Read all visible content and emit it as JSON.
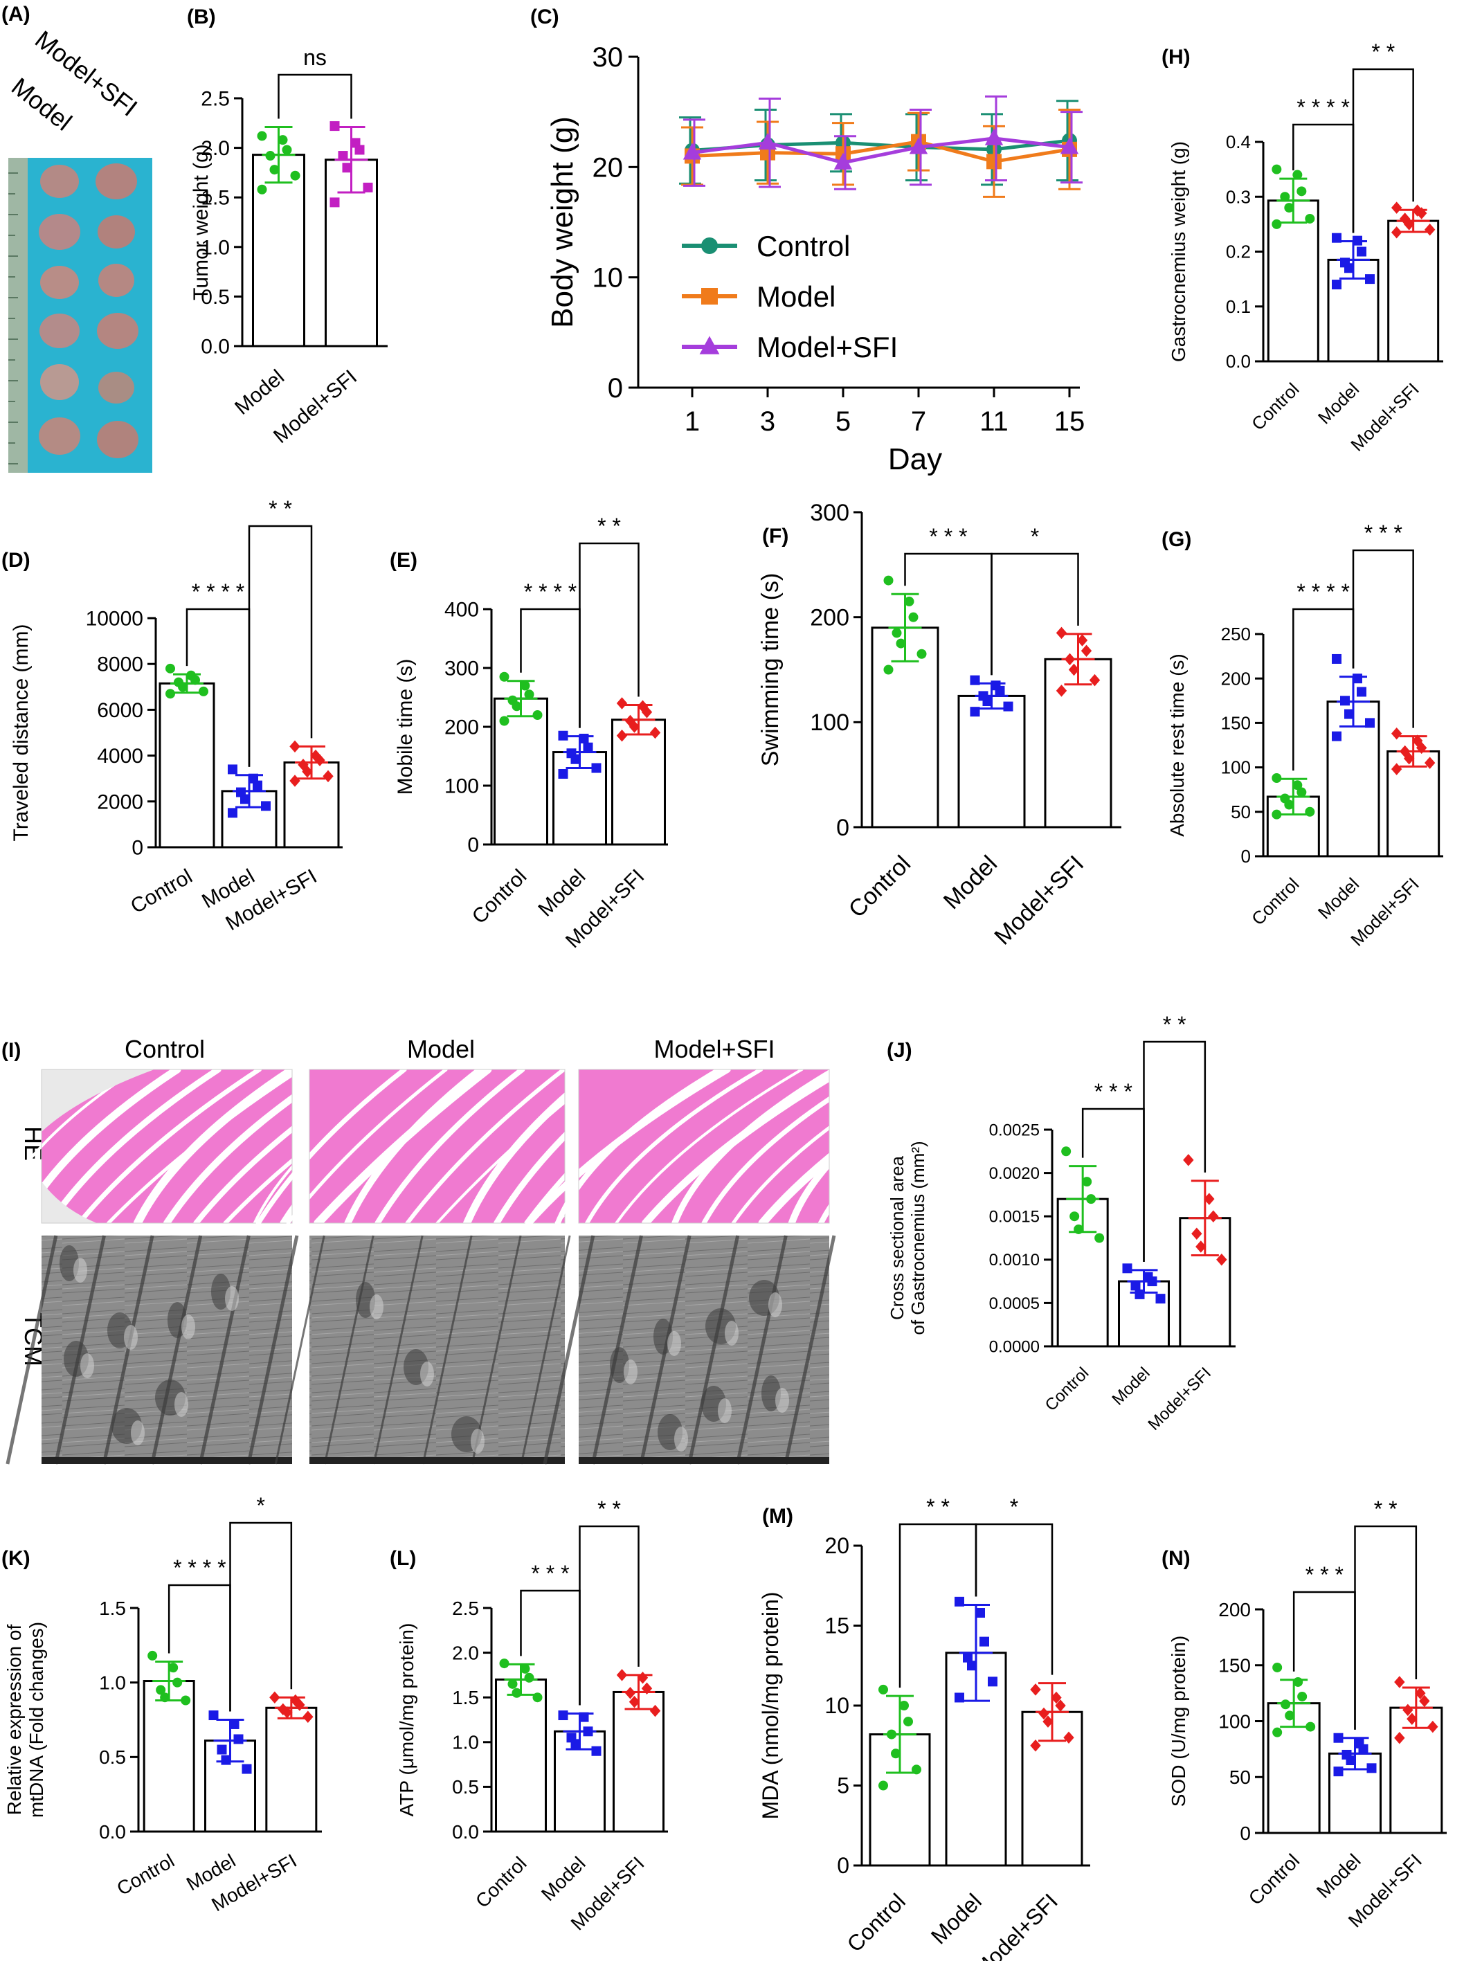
{
  "figure": {
    "panel_letters": [
      "(A)",
      "(B)",
      "(C)",
      "(D)",
      "(E)",
      "(F)",
      "(G)",
      "(H)",
      "(I)",
      "(J)",
      "(K)",
      "(L)",
      "(M)",
      "(N)"
    ],
    "photo_labels": [
      "Model+SFI",
      "Model"
    ],
    "histology": {
      "columns": [
        "Control",
        "Model",
        "Model+SFI"
      ],
      "rows": [
        "HE",
        "TCM"
      ],
      "he_colors": {
        "tissue": "#f07ad0",
        "gap": "#ffffff",
        "bg": "#e9e9e9"
      },
      "tem_colors": {
        "base": "#8a8a8a",
        "dark": "#3c3c3c",
        "light": "#d8d8d8"
      }
    },
    "group_colors": {
      "Control": "#1fbf1f",
      "Model": "#1a1ae6",
      "Model+SFI": "#e81e1e",
      "Model+SFI_B": "#c21fc2"
    }
  },
  "chart_data": [
    {
      "panel": "(B)",
      "type": "bar",
      "title": "",
      "categories": [
        "Model",
        "Model+SFI"
      ],
      "values": [
        1.93,
        1.88
      ],
      "sd": [
        0.28,
        0.33
      ],
      "points": [
        [
          2.12,
          2.08,
          1.98,
          1.92,
          1.78,
          1.72,
          1.58
        ],
        [
          2.22,
          2.05,
          1.98,
          1.92,
          1.8,
          1.6,
          1.45
        ]
      ],
      "ylabel": "Tumor weight (g)",
      "ylim": [
        0,
        2.5
      ],
      "yticks": [
        "0.0",
        "0.5",
        "1.0",
        "1.5",
        "2.0",
        "2.5"
      ],
      "colors": [
        "#1fbf1f",
        "#c21fc2"
      ],
      "markers": [
        "circle",
        "square"
      ],
      "sig": [
        {
          "from": 0,
          "to": 1,
          "label": "ns"
        }
      ]
    },
    {
      "panel": "(C)",
      "type": "line",
      "title": "",
      "x": [
        "1",
        "3",
        "5",
        "7",
        "11",
        "15"
      ],
      "xlabel": "Day",
      "ylabel": "Body weight (g)",
      "ylim": [
        0,
        30
      ],
      "yticks": [
        "0",
        "10",
        "20",
        "30"
      ],
      "legend_position": "center-left",
      "series": [
        {
          "name": "Control",
          "values": [
            21.5,
            22.0,
            22.2,
            21.8,
            21.6,
            22.4
          ],
          "sd": [
            3.0,
            3.2,
            2.6,
            3.0,
            3.2,
            3.6
          ],
          "color": "#1a8f73",
          "marker": "circle"
        },
        {
          "name": "Model",
          "values": [
            21.0,
            21.3,
            21.2,
            22.3,
            20.5,
            21.6
          ],
          "sd": [
            2.6,
            2.8,
            2.8,
            2.6,
            3.2,
            3.6
          ],
          "color": "#f07b1b",
          "marker": "square"
        },
        {
          "name": "Model+SFI",
          "values": [
            21.3,
            22.2,
            20.4,
            21.8,
            22.6,
            21.8
          ],
          "sd": [
            3.0,
            4.0,
            2.4,
            3.4,
            3.8,
            3.2
          ],
          "color": "#a53ddc",
          "marker": "triangle"
        }
      ]
    },
    {
      "panel": "(H)",
      "type": "bar",
      "title": "",
      "categories": [
        "Control",
        "Model",
        "Model+SFI"
      ],
      "values": [
        0.293,
        0.185,
        0.256
      ],
      "sd": [
        0.04,
        0.034,
        0.02
      ],
      "points": [
        [
          0.35,
          0.34,
          0.31,
          0.3,
          0.28,
          0.26,
          0.25
        ],
        [
          0.225,
          0.22,
          0.2,
          0.18,
          0.17,
          0.15,
          0.14
        ],
        [
          0.28,
          0.275,
          0.27,
          0.26,
          0.25,
          0.24,
          0.235
        ]
      ],
      "ylabel": "Gastrocnemius weight (g)",
      "ylim": [
        0,
        0.4
      ],
      "yticks": [
        "0.0",
        "0.1",
        "0.2",
        "0.3",
        "0.4"
      ],
      "colors": [
        "#1fbf1f",
        "#1a1ae6",
        "#e81e1e"
      ],
      "markers": [
        "circle",
        "square",
        "diamond"
      ],
      "sig": [
        {
          "from": 0,
          "to": 1,
          "label": "* * * *"
        },
        {
          "from": 1,
          "to": 2,
          "label": "* *"
        }
      ]
    },
    {
      "panel": "(D)",
      "type": "bar",
      "title": "",
      "categories": [
        "Control",
        "Model",
        "Model+SFI"
      ],
      "values": [
        7150,
        2450,
        3700
      ],
      "sd": [
        400,
        700,
        700
      ],
      "points": [
        [
          7800,
          7500,
          7300,
          7200,
          7000,
          6800,
          6700
        ],
        [
          3400,
          3000,
          2700,
          2400,
          2100,
          1800,
          1500
        ],
        [
          4400,
          4000,
          3800,
          3600,
          3300,
          3100,
          2900
        ]
      ],
      "ylabel": "Traveled distance (mm)",
      "ylim": [
        0,
        10000
      ],
      "yticks": [
        "0",
        "2000",
        "4000",
        "6000",
        "8000",
        "10000"
      ],
      "colors": [
        "#1fbf1f",
        "#1a1ae6",
        "#e81e1e"
      ],
      "markers": [
        "circle",
        "square",
        "diamond"
      ],
      "sig": [
        {
          "from": 0,
          "to": 1,
          "label": "* * * *"
        },
        {
          "from": 1,
          "to": 2,
          "label": "* *"
        }
      ]
    },
    {
      "panel": "(E)",
      "type": "bar",
      "title": "",
      "categories": [
        "Control",
        "Model",
        "Model+SFI"
      ],
      "values": [
        248,
        157,
        212
      ],
      "sd": [
        30,
        27,
        25
      ],
      "points": [
        [
          285,
          270,
          255,
          245,
          235,
          220,
          210
        ],
        [
          185,
          180,
          165,
          155,
          145,
          130,
          120
        ],
        [
          240,
          235,
          225,
          210,
          200,
          190,
          185
        ]
      ],
      "ylabel": "Mobile time (s)",
      "ylim": [
        0,
        400
      ],
      "yticks": [
        "0",
        "100",
        "200",
        "300",
        "400"
      ],
      "colors": [
        "#1fbf1f",
        "#1a1ae6",
        "#e81e1e"
      ],
      "markers": [
        "circle",
        "square",
        "diamond"
      ],
      "sig": [
        {
          "from": 0,
          "to": 1,
          "label": "* * * *"
        },
        {
          "from": 1,
          "to": 2,
          "label": "* *"
        }
      ]
    },
    {
      "panel": "(F)",
      "type": "bar",
      "title": "",
      "categories": [
        "Control",
        "Model",
        "Model+SFI"
      ],
      "values": [
        190,
        125,
        160
      ],
      "sd": [
        32,
        12,
        24
      ],
      "points": [
        [
          235,
          215,
          200,
          185,
          175,
          165,
          150
        ],
        [
          140,
          135,
          130,
          125,
          120,
          115,
          110
        ],
        [
          185,
          178,
          168,
          160,
          150,
          140,
          130
        ]
      ],
      "ylabel": "Swimming time (s)",
      "ylim": [
        0,
        300
      ],
      "yticks": [
        "0",
        "100",
        "200",
        "300"
      ],
      "colors": [
        "#1fbf1f",
        "#1a1ae6",
        "#e81e1e"
      ],
      "markers": [
        "circle",
        "square",
        "diamond"
      ],
      "sig": [
        {
          "from": 0,
          "to": 1,
          "label": "* * *"
        },
        {
          "from": 1,
          "to": 2,
          "label": "*"
        }
      ]
    },
    {
      "panel": "(G)",
      "type": "bar",
      "title": "",
      "categories": [
        "Control",
        "Model",
        "Model+SFI"
      ],
      "values": [
        67,
        174,
        118
      ],
      "sd": [
        20,
        28,
        17
      ],
      "points": [
        [
          88,
          80,
          72,
          65,
          58,
          50,
          47
        ],
        [
          222,
          200,
          185,
          175,
          160,
          150,
          135
        ],
        [
          138,
          130,
          122,
          118,
          110,
          105,
          98
        ]
      ],
      "ylabel": "Absolute rest time (s)",
      "ylim": [
        0,
        250
      ],
      "yticks": [
        "0",
        "50",
        "100",
        "150",
        "200",
        "250"
      ],
      "colors": [
        "#1fbf1f",
        "#1a1ae6",
        "#e81e1e"
      ],
      "markers": [
        "circle",
        "square",
        "diamond"
      ],
      "sig": [
        {
          "from": 0,
          "to": 1,
          "label": "* * * *"
        },
        {
          "from": 1,
          "to": 2,
          "label": "* * *"
        }
      ]
    },
    {
      "panel": "(J)",
      "type": "bar",
      "title": "",
      "categories": [
        "Control",
        "Model",
        "Model+SFI"
      ],
      "values": [
        0.0017,
        0.00075,
        0.00148
      ],
      "sd": [
        0.00038,
        0.00013,
        0.00043
      ],
      "points": [
        [
          0.00225,
          0.0019,
          0.0017,
          0.0015,
          0.00135,
          0.00125
        ],
        [
          0.0009,
          0.0008,
          0.00075,
          0.0007,
          0.0006,
          0.00055
        ],
        [
          0.00215,
          0.0017,
          0.0015,
          0.0013,
          0.00115,
          0.001
        ]
      ],
      "ylabel": "Cross sectional area",
      "ylabel2": "of Gastrocnemius (mm²)",
      "ylim": [
        0,
        0.0025
      ],
      "yticks": [
        "0.0000",
        "0.0005",
        "0.0010",
        "0.0015",
        "0.0020",
        "0.0025"
      ],
      "colors": [
        "#1fbf1f",
        "#1a1ae6",
        "#e81e1e"
      ],
      "markers": [
        "circle",
        "square",
        "diamond"
      ],
      "sig": [
        {
          "from": 0,
          "to": 1,
          "label": "* * *"
        },
        {
          "from": 1,
          "to": 2,
          "label": "* *"
        }
      ]
    },
    {
      "panel": "(K)",
      "type": "bar",
      "title": "",
      "categories": [
        "Control",
        "Model",
        "Model+SFI"
      ],
      "values": [
        1.01,
        0.61,
        0.83
      ],
      "sd": [
        0.13,
        0.14,
        0.07
      ],
      "points": [
        [
          1.18,
          1.1,
          1.0,
          0.95,
          0.9,
          0.88
        ],
        [
          0.78,
          0.72,
          0.62,
          0.55,
          0.48,
          0.42
        ],
        [
          0.9,
          0.88,
          0.85,
          0.82,
          0.8,
          0.77
        ]
      ],
      "ylabel": "Relative expression of",
      "ylabel2": "mtDNA (Fold changes)",
      "ylim": [
        0,
        1.5
      ],
      "yticks": [
        "0.0",
        "0.5",
        "1.0",
        "1.5"
      ],
      "colors": [
        "#1fbf1f",
        "#1a1ae6",
        "#e81e1e"
      ],
      "markers": [
        "circle",
        "square",
        "diamond"
      ],
      "sig": [
        {
          "from": 0,
          "to": 1,
          "label": "* * * *"
        },
        {
          "from": 1,
          "to": 2,
          "label": "*"
        }
      ]
    },
    {
      "panel": "(L)",
      "type": "bar",
      "title": "",
      "categories": [
        "Control",
        "Model",
        "Model+SFI"
      ],
      "values": [
        1.7,
        1.12,
        1.56
      ],
      "sd": [
        0.17,
        0.2,
        0.19
      ],
      "points": [
        [
          1.88,
          1.82,
          1.72,
          1.65,
          1.55,
          1.5
        ],
        [
          1.3,
          1.28,
          1.12,
          1.05,
          0.98,
          0.9
        ],
        [
          1.75,
          1.72,
          1.6,
          1.55,
          1.45,
          1.35
        ]
      ],
      "ylabel": "ATP (μmol/mg protein)",
      "ylim": [
        0,
        2.5
      ],
      "yticks": [
        "0.0",
        "0.5",
        "1.0",
        "1.5",
        "2.0",
        "2.5"
      ],
      "colors": [
        "#1fbf1f",
        "#1a1ae6",
        "#e81e1e"
      ],
      "markers": [
        "circle",
        "square",
        "diamond"
      ],
      "sig": [
        {
          "from": 0,
          "to": 1,
          "label": "* * *"
        },
        {
          "from": 1,
          "to": 2,
          "label": "* *"
        }
      ]
    },
    {
      "panel": "(M)",
      "type": "bar",
      "title": "",
      "categories": [
        "Control",
        "Model",
        "Model+SFI"
      ],
      "values": [
        8.2,
        13.3,
        9.6
      ],
      "sd": [
        2.4,
        3.0,
        1.8
      ],
      "points": [
        [
          11.0,
          10.0,
          9.0,
          8.2,
          7.0,
          6.0,
          5.0
        ],
        [
          16.5,
          15.8,
          14.0,
          13.0,
          12.5,
          11.5,
          10.5
        ],
        [
          11.0,
          10.5,
          10.0,
          9.5,
          9.0,
          8.0,
          7.5
        ]
      ],
      "ylabel": "MDA (nmol/mg protein)",
      "ylim": [
        0,
        20
      ],
      "yticks": [
        "0",
        "5",
        "10",
        "15",
        "20"
      ],
      "colors": [
        "#1fbf1f",
        "#1a1ae6",
        "#e81e1e"
      ],
      "markers": [
        "circle",
        "square",
        "diamond"
      ],
      "sig": [
        {
          "from": 0,
          "to": 1,
          "label": "* *"
        },
        {
          "from": 1,
          "to": 2,
          "label": "*"
        }
      ]
    },
    {
      "panel": "(N)",
      "type": "bar",
      "title": "",
      "categories": [
        "Control",
        "Model",
        "Model+SFI"
      ],
      "values": [
        116,
        71,
        112
      ],
      "sd": [
        21,
        14,
        18
      ],
      "points": [
        [
          148,
          135,
          122,
          115,
          105,
          95,
          90
        ],
        [
          85,
          80,
          75,
          70,
          65,
          58,
          55
        ],
        [
          135,
          125,
          118,
          110,
          102,
          95,
          85
        ]
      ],
      "ylabel": "SOD (U/mg protein)",
      "ylim": [
        0,
        200
      ],
      "yticks": [
        "0",
        "50",
        "100",
        "150",
        "200"
      ],
      "colors": [
        "#1fbf1f",
        "#1a1ae6",
        "#e81e1e"
      ],
      "markers": [
        "circle",
        "square",
        "diamond"
      ],
      "sig": [
        {
          "from": 0,
          "to": 1,
          "label": "* * *"
        },
        {
          "from": 1,
          "to": 2,
          "label": "* *"
        }
      ]
    }
  ]
}
